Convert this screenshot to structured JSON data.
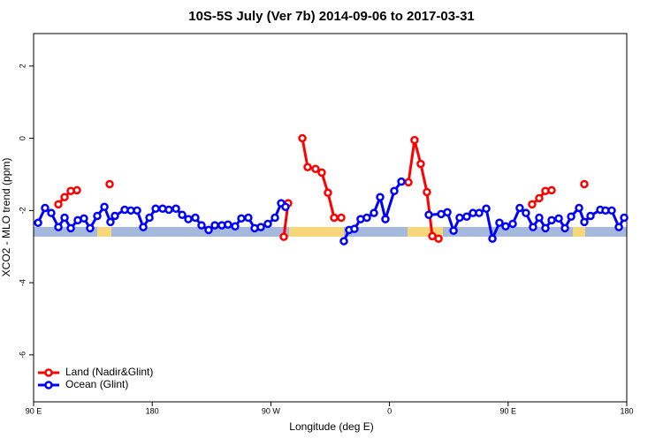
{
  "chart_data": {
    "type": "line",
    "title": "10S-5S July (Ver 7b)   2014-09-06 to 2017-03-31",
    "x_label": "Longitude (deg E)",
    "y_label": "XCO2 - MLO trend (ppm)",
    "xlim": [
      90,
      540
    ],
    "ylim": [
      -7.3,
      2.9
    ],
    "xticks": [
      {
        "value": 90,
        "label": "90 E"
      },
      180,
      {
        "value": 270,
        "label": "90 W"
      },
      {
        "value": 360,
        "label": "0"
      },
      {
        "value": 450,
        "label": "90 E"
      },
      {
        "value": 540,
        "label": "180"
      }
    ],
    "yticks": [
      2,
      0,
      -2,
      -4,
      -6
    ],
    "legend": "bottom-left",
    "series": [
      {
        "name": "Land (Nadir&Glint)",
        "color": "#ff0000",
        "x": [
          108.8,
          113.5,
          118.2,
          122.9,
          null,
          147.7,
          null,
          279.8,
          283.1,
          null,
          293.9,
          297.9,
          303.9,
          308.6,
          313.3,
          318.0,
          323.4,
          null,
          374.4,
          379.0,
          383.7,
          388.4,
          392.5,
          397.2,
          null,
          468.2,
          473.6,
          478.3,
          483.0,
          null,
          507.8
        ],
        "values": [
          -1.83,
          -1.63,
          -1.46,
          -1.44,
          null,
          -1.27,
          null,
          -2.73,
          -1.8,
          null,
          0.0,
          -0.8,
          -0.85,
          -0.95,
          -1.51,
          -2.2,
          -2.2,
          null,
          -1.22,
          -0.05,
          -0.71,
          -1.49,
          -2.71,
          -2.78,
          null,
          -1.83,
          -1.66,
          -1.46,
          -1.44,
          null,
          -1.27
        ]
      },
      {
        "name": "Ocean (Glint)",
        "color": "#0000ff",
        "x": [
          93.4,
          98.7,
          103.4,
          108.8,
          113.5,
          118.2,
          123.5,
          128.2,
          132.9,
          138.3,
          143.7,
          148.3,
          151.7,
          159.1,
          163.8,
          168.5,
          173.2,
          177.9,
          182.6,
          187.9,
          192.6,
          198.0,
          202.7,
          207.4,
          212.7,
          217.4,
          222.8,
          227.5,
          232.8,
          237.5,
          242.9,
          247.6,
          252.9,
          257.7,
          262.4,
          267.7,
          273.1,
          277.8,
          281.1,
          null,
          325.4,
          329.4,
          333.4,
          338.1,
          342.8,
          348.2,
          352.9,
          356.9,
          363.6,
          369.0,
          null,
          389.8,
          399.2,
          403.9,
          408.6,
          413.2,
          418.6,
          423.3,
          428.0,
          433.4,
          438.1,
          443.4,
          448.1,
          453.5,
          458.8,
          463.5,
          468.9,
          473.6,
          478.3,
          483.0,
          488.4,
          493.1,
          497.8,
          503.8,
          507.8,
          512.5,
          519.9,
          523.9,
          528.6,
          534.0,
          538.0
        ],
        "values": [
          -2.34,
          -1.93,
          -2.07,
          -2.46,
          -2.2,
          -2.49,
          -2.27,
          -2.22,
          -2.49,
          -2.15,
          -1.9,
          -2.32,
          -2.15,
          -1.98,
          -2.0,
          -2.0,
          -2.46,
          -2.2,
          -1.95,
          -1.95,
          -1.98,
          -1.95,
          -2.12,
          -2.24,
          -2.2,
          -2.41,
          -2.54,
          -2.41,
          -2.41,
          -2.39,
          -2.44,
          -2.22,
          -2.2,
          -2.49,
          -2.46,
          -2.37,
          -2.2,
          -1.8,
          -1.9,
          null,
          -2.85,
          -2.54,
          -2.51,
          -2.24,
          -2.2,
          -2.07,
          -1.63,
          -2.24,
          -1.46,
          -1.2,
          null,
          -2.12,
          -2.1,
          -2.05,
          -2.56,
          -2.2,
          -2.17,
          -2.07,
          -2.07,
          -1.95,
          -2.78,
          -2.34,
          -2.44,
          -2.37,
          -1.93,
          -2.07,
          -2.46,
          -2.2,
          -2.49,
          -2.27,
          -2.22,
          -2.49,
          -2.17,
          -1.93,
          -2.32,
          -2.15,
          -1.98,
          -2.0,
          -2.0,
          -2.46,
          -2.2
        ]
      }
    ]
  }
}
